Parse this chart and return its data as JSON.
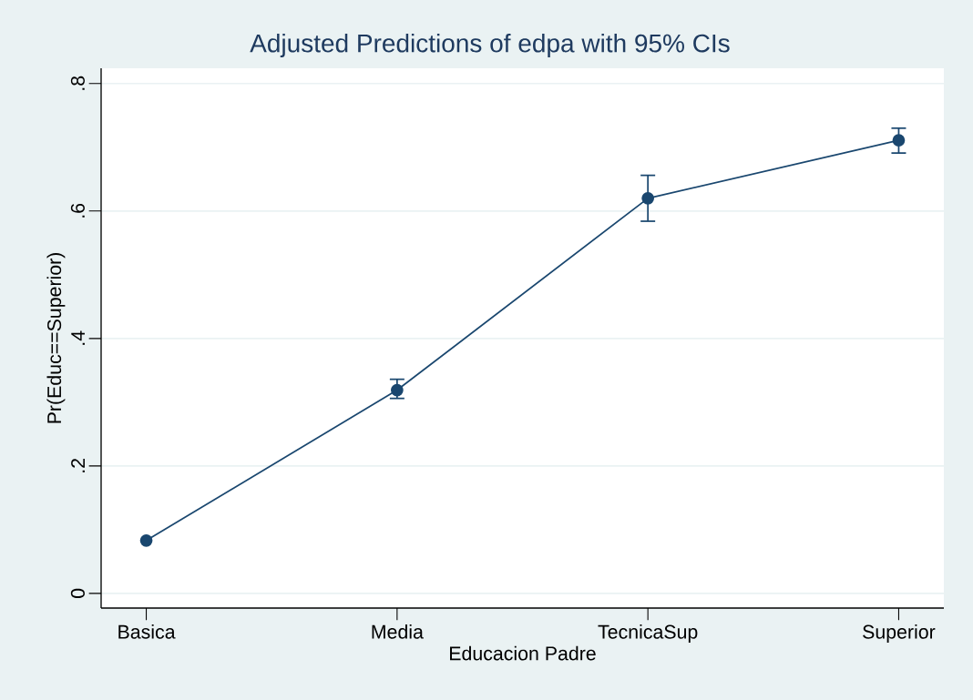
{
  "chart_data": {
    "type": "line",
    "title": "Adjusted Predictions of edpa with 95% CIs",
    "xlabel": "Educacion Padre",
    "ylabel": "Pr(Educ==Superior)",
    "categories": [
      "Basica",
      "Media",
      "TecnicaSup",
      "Superior"
    ],
    "values": [
      0.083,
      0.319,
      0.62,
      0.711
    ],
    "errors": [
      null,
      [
        0.306,
        0.336
      ],
      [
        0.584,
        0.656
      ],
      [
        0.691,
        0.73
      ]
    ],
    "color": "#1a476f",
    "marker": "circle",
    "grid": "y",
    "ylim": [
      -0.023,
      0.824
    ],
    "yticks": [
      0,
      {
        "value": 0.2,
        "label": ".2"
      },
      {
        "value": 0.4,
        "label": ".4"
      },
      {
        "value": 0.6,
        "label": ".6"
      },
      {
        "value": 0.8,
        "label": ".8"
      }
    ]
  }
}
